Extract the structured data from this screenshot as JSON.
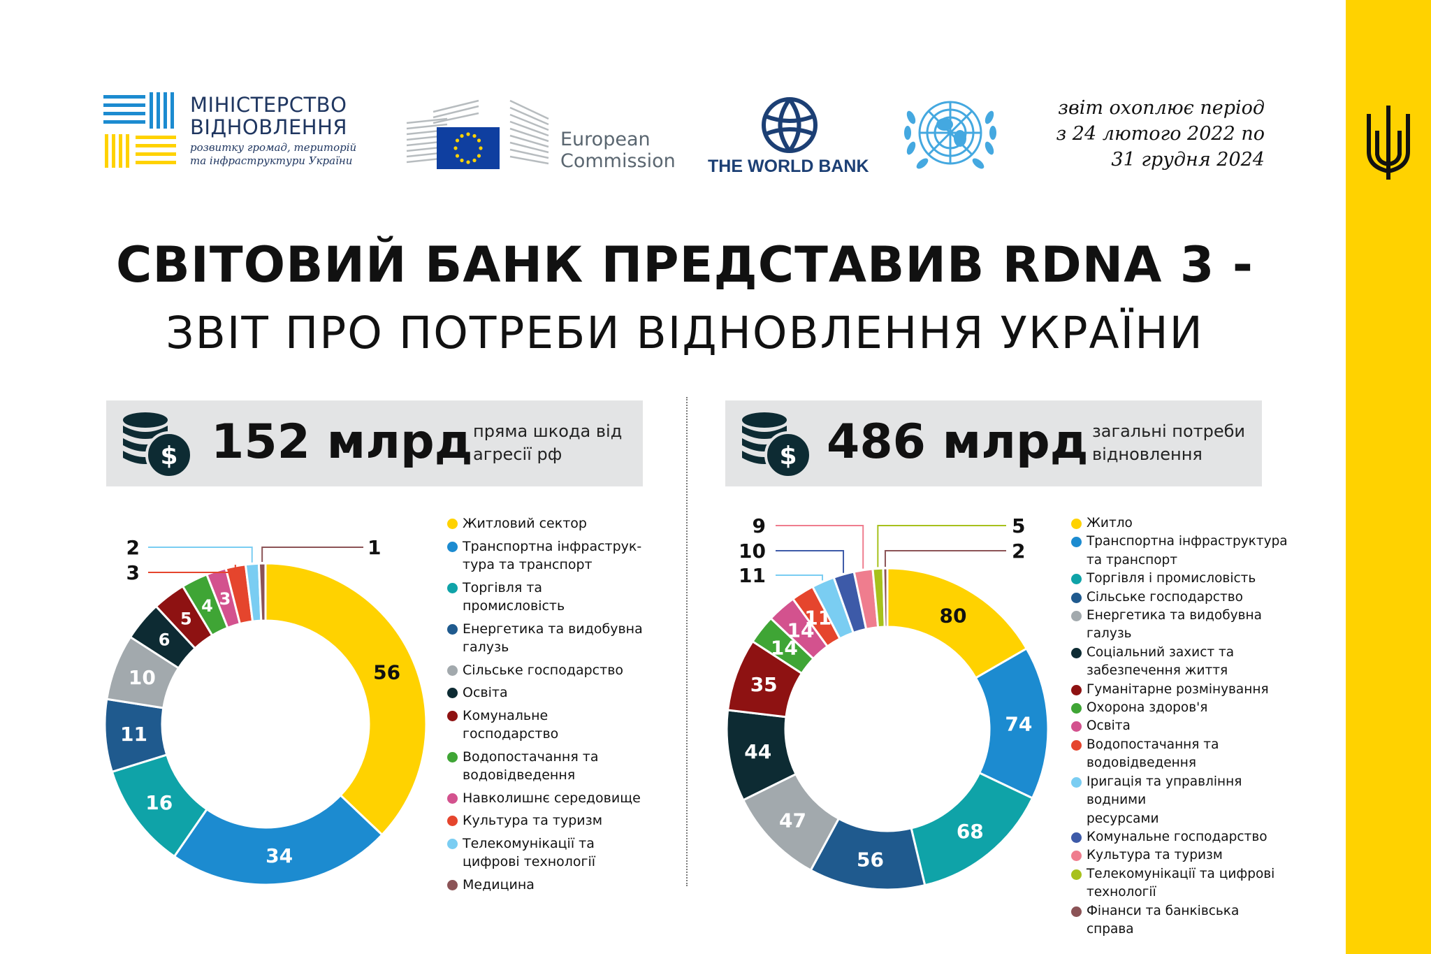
{
  "header": {
    "ministry_name_line1": "МІНІСТЕРСТВО",
    "ministry_name_line2": "ВІДНОВЛЕННЯ",
    "ministry_sub_line1": "розвитку громад, територій",
    "ministry_sub_line2": "та інфраструктури України",
    "ec_line1": "European",
    "ec_line2": "Commission",
    "world_bank": "THE WORLD BANK",
    "period_line1": "звіт охоплює період",
    "period_line2": "з 24 лютого 2022 по",
    "period_line3": "31 грудня 2024"
  },
  "title": {
    "line1": "СВІТОВИЙ БАНК ПРЕДСТАВИВ RDNA 3 -",
    "line2": "ЗВІТ ПРО ПОТРЕБИ ВІДНОВЛЕННЯ УКРАЇНИ"
  },
  "left_banner": {
    "amount": "152 млрд",
    "desc_line1": "пряма шкода від",
    "desc_line2": "агресії рф"
  },
  "right_banner": {
    "amount": "486 млрд",
    "desc_line1": "загальні потреби",
    "desc_line2": "відновлення"
  },
  "colors": {
    "accent_yellow": "#FFD200",
    "banner_bg": "#e3e4e5",
    "text": "#111111"
  },
  "chart_data": [
    {
      "type": "pie",
      "title": "152 млрд",
      "subtitle": "пряма шкода від агресії рф",
      "categories": [
        "Житловий сектор",
        "Транспортна інфраструк-тура та транспорт",
        "Торгівля та промисловість",
        "Енергетика та видобувна галузь",
        "Сільське господарство",
        "Освіта",
        "Комунальне господарство",
        "Водопостачання та водовідведення",
        "Навколишнє середовище",
        "Культура та туризм",
        "Телекомунікації та цифрові технології",
        "Медицина"
      ],
      "legend_lines": [
        [
          "Житловий сектор"
        ],
        [
          "Транспортна інфраструк-",
          "тура та транспорт"
        ],
        [
          "Торгівля та промисловість"
        ],
        [
          "Енергетика та видобувна",
          "галузь"
        ],
        [
          "Сільське господарство"
        ],
        [
          "Освіта"
        ],
        [
          "Комунальне господарство"
        ],
        [
          "Водопостачання та",
          "водовідведення"
        ],
        [
          "Навколишнє середовище"
        ],
        [
          "Культура та туризм"
        ],
        [
          "Телекомунікації та",
          "цифрові технології"
        ],
        [
          "Медицина"
        ]
      ],
      "values": [
        56,
        34,
        16,
        11,
        10,
        6,
        5,
        4,
        3,
        3,
        2,
        1
      ],
      "colors": [
        "#FFD200",
        "#1C8BD0",
        "#0FA3A8",
        "#1F5A8E",
        "#A2A9AD",
        "#0D2B33",
        "#8E1212",
        "#3FA535",
        "#D3528E",
        "#E5452D",
        "#7ACDF2",
        "#8B5356"
      ],
      "legend_position": "right"
    },
    {
      "type": "pie",
      "title": "486 млрд",
      "subtitle": "загальні потреби відновлення",
      "categories": [
        "Житло",
        "Транспортна інфраструктура та транспорт",
        "Торгівля і промисловість",
        "Сільське господарство",
        "Енергетика та видобувна галузь",
        "Соціальний захист та забезпечення життя",
        "Гуманітарне розмінування",
        "Охорона здоров'я",
        "Освіта",
        "Водопостачання та водовідведення",
        "Іригація та управління водними ресурсами",
        "Комунальне господарство",
        "Культура та туризм",
        "Телекомунікації та цифрові технології",
        "Фінанси та банківська справа"
      ],
      "legend_lines": [
        [
          "Житло"
        ],
        [
          "Транспортна інфраструктура",
          "та транспорт"
        ],
        [
          "Торгівля і промисловість"
        ],
        [
          "Сільське господарство"
        ],
        [
          "Енергетика та видобувна галузь"
        ],
        [
          "Соціальний захист та",
          "забезпечення життя"
        ],
        [
          "Гуманітарне розмінування"
        ],
        [
          "Охорона здоров'я"
        ],
        [
          "Освіта"
        ],
        [
          "Водопостачання та",
          "водовідведення"
        ],
        [
          "Іригація та управління водними",
          "ресурсами"
        ],
        [
          "Комунальне господарство"
        ],
        [
          "Культура та туризм"
        ],
        [
          "Телекомунікації та цифрові",
          "технології"
        ],
        [
          "Фінанси та банківська справа"
        ]
      ],
      "values": [
        80,
        74,
        68,
        56,
        47,
        44,
        35,
        14,
        14,
        11,
        11,
        10,
        9,
        5,
        2
      ],
      "colors": [
        "#FFD200",
        "#1C8BD0",
        "#0FA3A8",
        "#1F5A8E",
        "#A2A9AD",
        "#0D2B33",
        "#8E1212",
        "#3FA535",
        "#D3528E",
        "#E5452D",
        "#7ACDF2",
        "#3D5AA8",
        "#EF7D8E",
        "#A7C11C",
        "#8B5356"
      ],
      "legend_position": "right"
    }
  ]
}
